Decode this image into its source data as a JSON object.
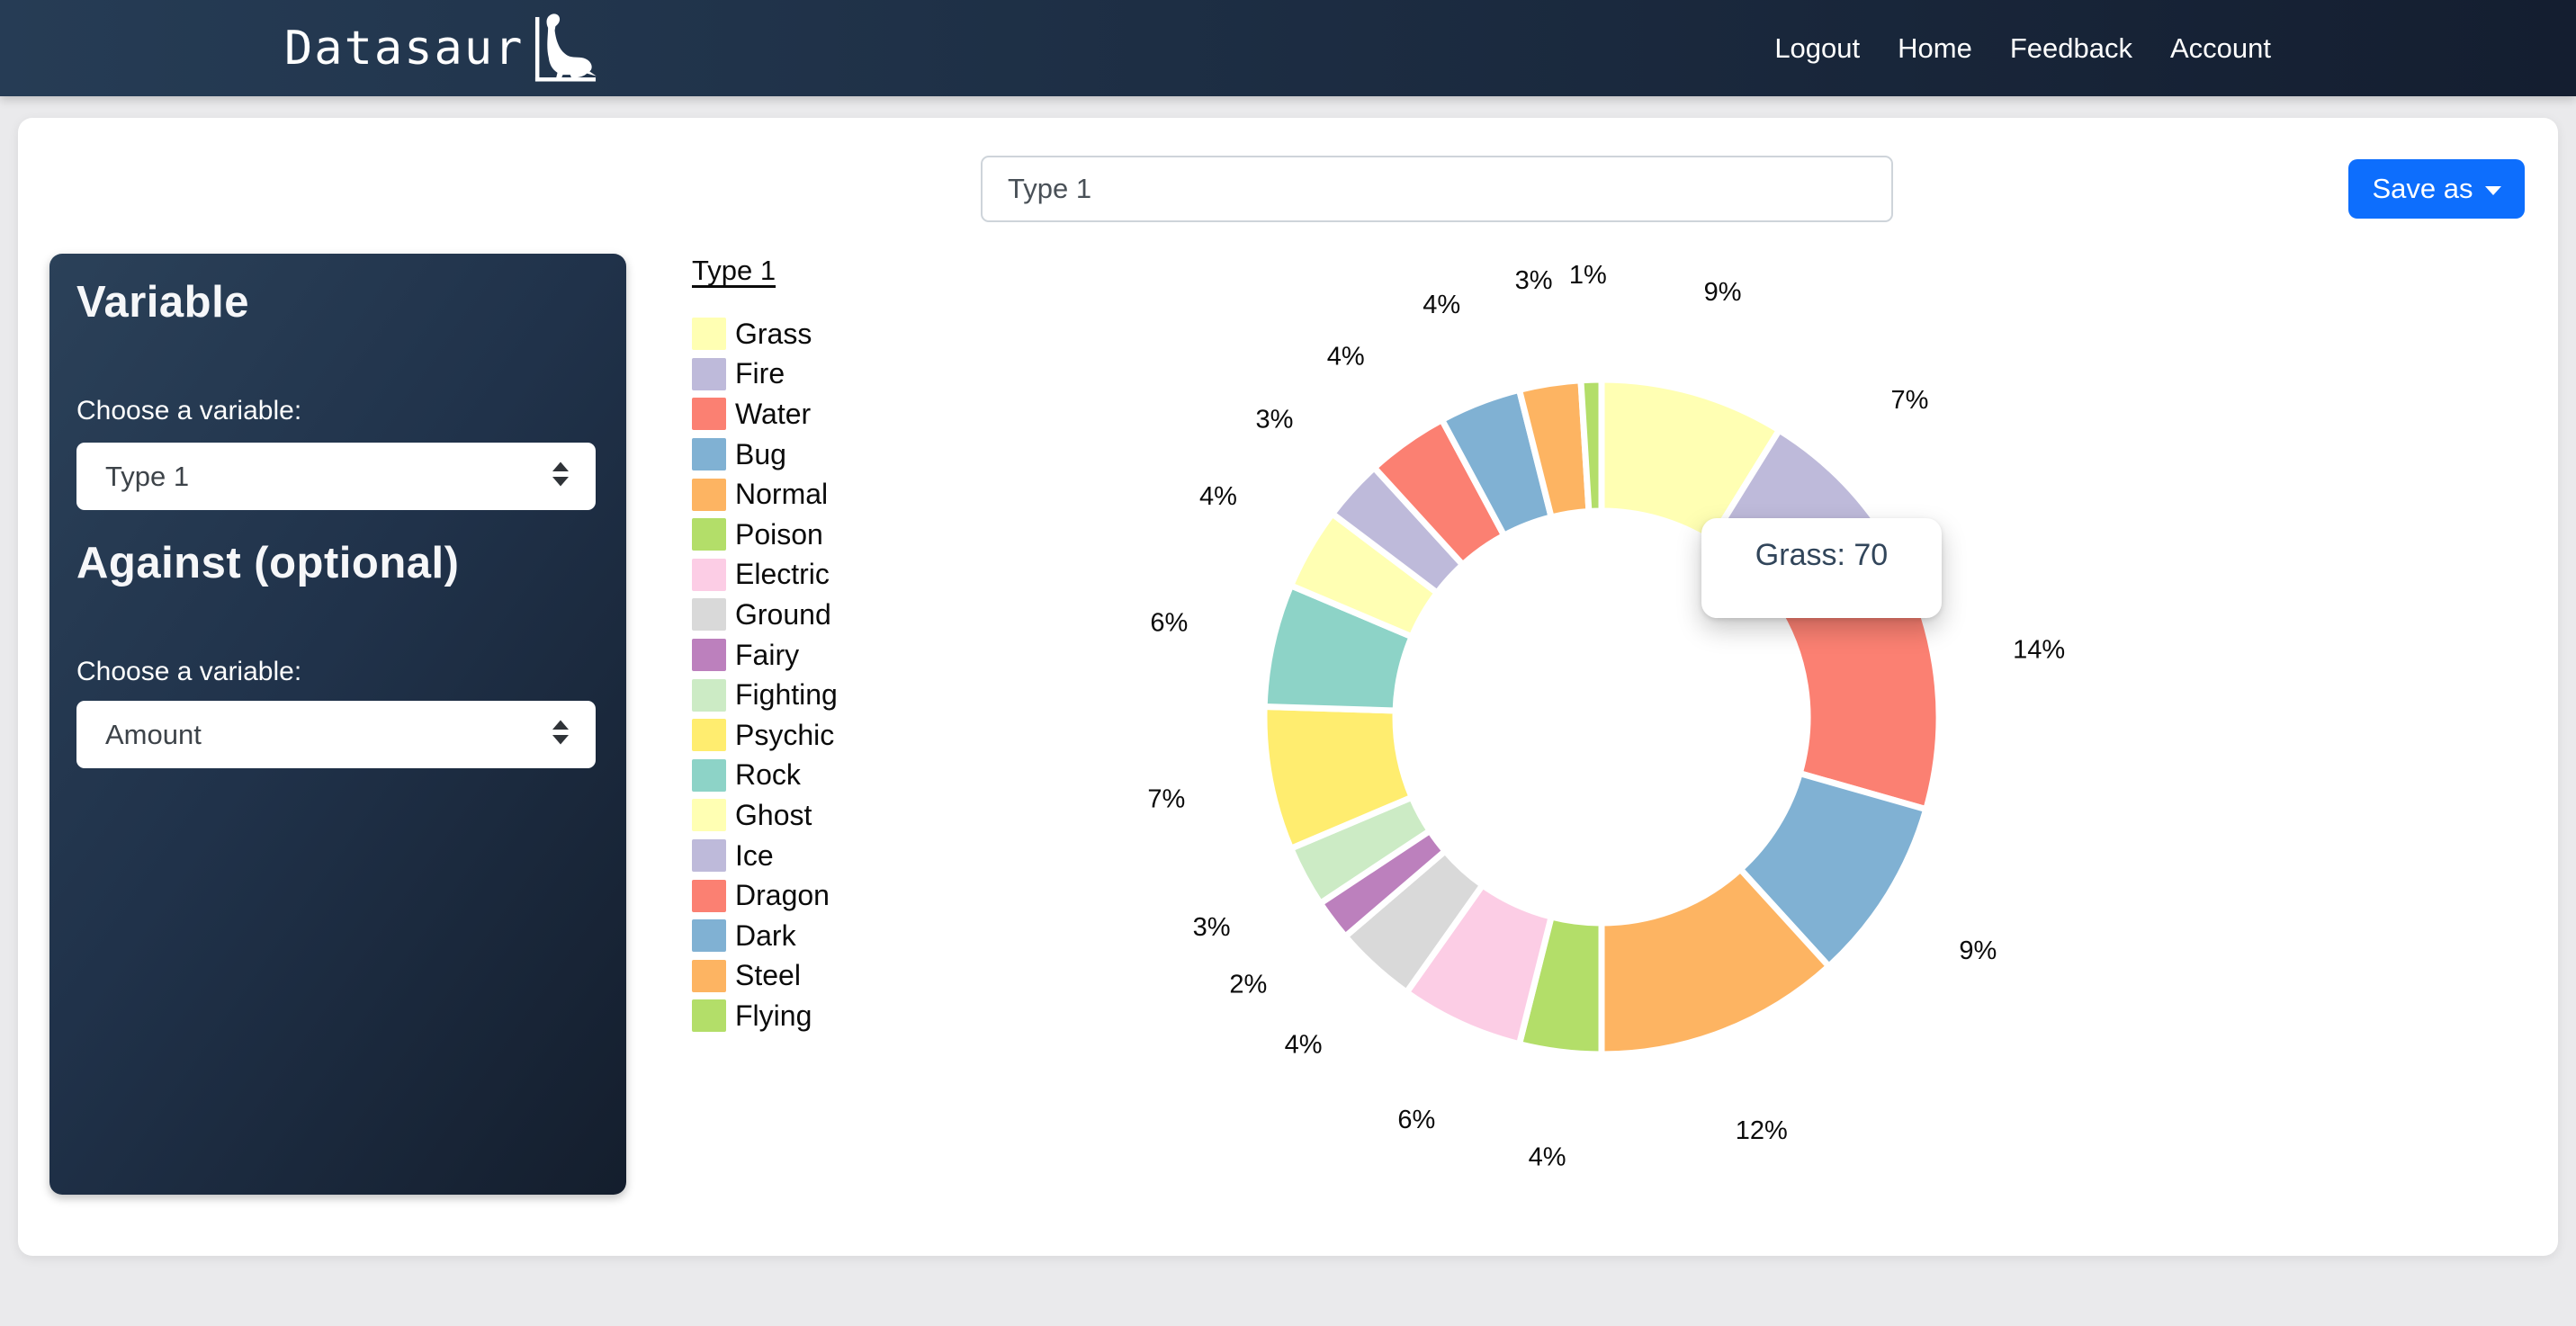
{
  "navbar": {
    "brand": "Datasaur",
    "links": [
      {
        "label": "Logout"
      },
      {
        "label": "Home"
      },
      {
        "label": "Feedback"
      },
      {
        "label": "Account"
      }
    ]
  },
  "toolbar": {
    "chart_title_value": "Type 1",
    "save_as_label": "Save as"
  },
  "sidebar": {
    "variable_heading": "Variable",
    "variable_choose_label": "Choose a variable:",
    "variable_select_value": "Type 1",
    "against_heading": "Against (optional)",
    "against_choose_label": "Choose a variable:",
    "against_select_value": "Amount"
  },
  "chart_data": {
    "type": "doughnut",
    "legend_title": "Type 1",
    "legend_position": "left",
    "start_angle": "top",
    "direction": "clockwise",
    "cutout_ratio": 0.61,
    "categories": [
      "Grass",
      "Fire",
      "Water",
      "Bug",
      "Normal",
      "Poison",
      "Electric",
      "Ground",
      "Fairy",
      "Fighting",
      "Psychic",
      "Rock",
      "Ghost",
      "Ice",
      "Dragon",
      "Dark",
      "Steel",
      "Flying"
    ],
    "percent_values": [
      9,
      7,
      14,
      9,
      12,
      4,
      6,
      4,
      2,
      3,
      7,
      6,
      4,
      3,
      4,
      4,
      3,
      1
    ],
    "percent_labels": [
      "9%",
      "7%",
      "14%",
      "9%",
      "12%",
      "4%",
      "6%",
      "4%",
      "2%",
      "3%",
      "7%",
      "6%",
      "4%",
      "3%",
      "4%",
      "4%",
      "3%",
      "1%"
    ],
    "colors": [
      "#ffffb3",
      "#bebada",
      "#fb8072",
      "#80b1d3",
      "#fdb462",
      "#b3de69",
      "#fccde5",
      "#d9d9d9",
      "#bc80bd",
      "#ccebc5",
      "#ffed6f",
      "#8dd3c7",
      "#ffffb3",
      "#bebada",
      "#fb8072",
      "#80b1d3",
      "#fdb462",
      "#b3de69"
    ],
    "tooltip": {
      "label": "Grass",
      "value": 70,
      "text": "Grass: 70"
    }
  }
}
